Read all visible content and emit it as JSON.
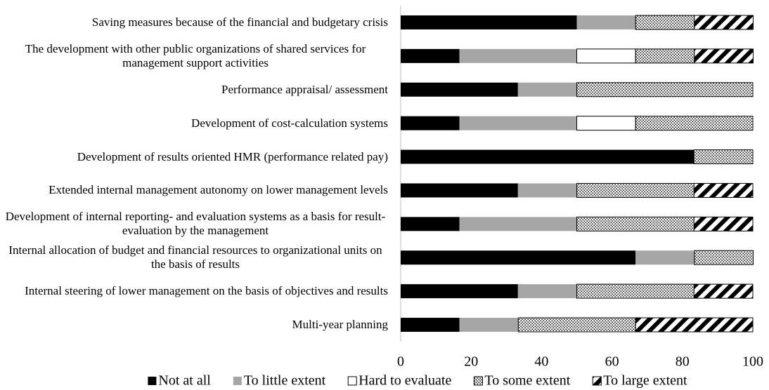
{
  "chart_data": {
    "type": "stacked-bar-horizontal",
    "categories": [
      "Saving measures because of the financial and budgetary crisis",
      "The development with other public organizations of shared services for management support activities",
      "Performance appraisal/ assessment",
      "Development of cost-calculation systems",
      "Development of results oriented HMR (performance related pay)",
      "Extended internal management autonomy on lower management levels",
      "Development of internal reporting- and evaluation systems as a basis for result-evaluation by the management",
      "Internal allocation of budget and financial resources to organizational units on the basis of results",
      "Internal steering of lower management on the basis of objectives and results",
      "Multi-year planning"
    ],
    "series": [
      {
        "name": "Not at all",
        "color": "#000000",
        "values": [
          50,
          16.7,
          33.3,
          16.7,
          83.3,
          33.3,
          16.7,
          66.7,
          33.3,
          16.7
        ]
      },
      {
        "name": "To little extent",
        "color": "#a6a6a6",
        "values": [
          16.7,
          33.3,
          16.7,
          33.3,
          0,
          16.7,
          33.3,
          16.7,
          16.7,
          16.7
        ]
      },
      {
        "name": "Hard to evaluate",
        "color": "#ffffff",
        "values": [
          0,
          16.7,
          0,
          16.7,
          0,
          0,
          0,
          0,
          0,
          0
        ]
      },
      {
        "name": "To some extent",
        "color": "#ffffff",
        "pattern": "dots",
        "values": [
          16.7,
          16.7,
          50,
          33.3,
          16.7,
          33.3,
          33.3,
          16.7,
          33.3,
          33.3
        ]
      },
      {
        "name": "To large extent",
        "color": "#ffffff",
        "pattern": "diagonal",
        "values": [
          16.7,
          16.7,
          0,
          0,
          0,
          16.7,
          16.7,
          0,
          16.7,
          33.3
        ]
      }
    ],
    "xlim": [
      0,
      100
    ],
    "xticks": [
      0,
      20,
      40,
      60,
      80,
      100
    ],
    "grid": false,
    "legend": "bottom"
  }
}
